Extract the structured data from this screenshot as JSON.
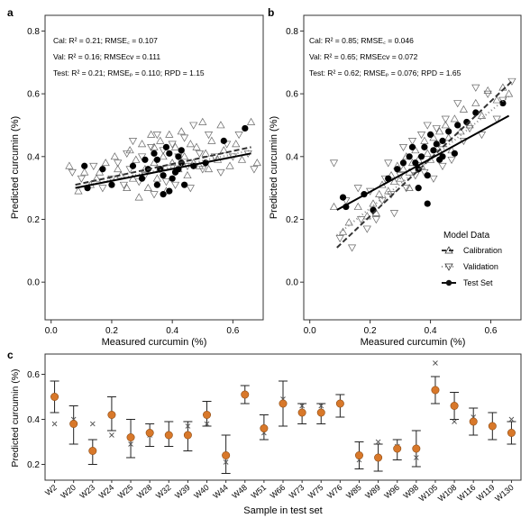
{
  "chart_data": [
    {
      "type": "scatter",
      "panel_label": "a",
      "xlabel": "Measured curcumin (%)",
      "ylabel": "Predicted curcumin (%)",
      "xlim": [
        -0.02,
        0.7
      ],
      "ylim": [
        -0.12,
        0.85
      ],
      "xticks": [
        "0.0",
        "0.2",
        "0.4",
        "0.6"
      ],
      "yticks": [
        "0.0",
        "0.2",
        "0.4",
        "0.6",
        "0.8"
      ],
      "annotations": {
        "cal": "Cal: R² = 0.21; RMSE꜀ = 0.107",
        "val": "Val: R² = 0.16; RMSEᴄᴠ = 0.111",
        "test": "Test: R² = 0.21; RMSEₚ = 0.110; RPD = 1.15"
      },
      "lines": {
        "calibration": {
          "x": [
            0.08,
            0.66
          ],
          "y": [
            0.31,
            0.43
          ]
        },
        "validation": {
          "x": [
            0.08,
            0.66
          ],
          "y": [
            0.3,
            0.42
          ]
        },
        "test": {
          "x": [
            0.08,
            0.66
          ],
          "y": [
            0.3,
            0.41
          ]
        }
      },
      "test_points": [
        [
          0.11,
          0.37
        ],
        [
          0.12,
          0.3
        ],
        [
          0.17,
          0.36
        ],
        [
          0.2,
          0.31
        ],
        [
          0.27,
          0.37
        ],
        [
          0.3,
          0.33
        ],
        [
          0.31,
          0.39
        ],
        [
          0.32,
          0.36
        ],
        [
          0.34,
          0.41
        ],
        [
          0.35,
          0.39
        ],
        [
          0.35,
          0.31
        ],
        [
          0.36,
          0.36
        ],
        [
          0.37,
          0.34
        ],
        [
          0.37,
          0.28
        ],
        [
          0.38,
          0.43
        ],
        [
          0.39,
          0.29
        ],
        [
          0.39,
          0.41
        ],
        [
          0.4,
          0.33
        ],
        [
          0.41,
          0.35
        ],
        [
          0.42,
          0.4
        ],
        [
          0.42,
          0.36
        ],
        [
          0.43,
          0.38
        ],
        [
          0.43,
          0.42
        ],
        [
          0.44,
          0.31
        ],
        [
          0.47,
          0.37
        ],
        [
          0.51,
          0.38
        ],
        [
          0.57,
          0.45
        ],
        [
          0.64,
          0.49
        ]
      ],
      "cal_points": [
        [
          0.06,
          0.37
        ],
        [
          0.09,
          0.29
        ],
        [
          0.11,
          0.35
        ],
        [
          0.13,
          0.31
        ],
        [
          0.15,
          0.33
        ],
        [
          0.16,
          0.35
        ],
        [
          0.18,
          0.38
        ],
        [
          0.21,
          0.4
        ],
        [
          0.23,
          0.34
        ],
        [
          0.25,
          0.3
        ],
        [
          0.26,
          0.42
        ],
        [
          0.27,
          0.33
        ],
        [
          0.28,
          0.39
        ],
        [
          0.29,
          0.27
        ],
        [
          0.3,
          0.44
        ],
        [
          0.31,
          0.36
        ],
        [
          0.32,
          0.3
        ],
        [
          0.33,
          0.47
        ],
        [
          0.34,
          0.38
        ],
        [
          0.35,
          0.33
        ],
        [
          0.36,
          0.45
        ],
        [
          0.37,
          0.4
        ],
        [
          0.38,
          0.29
        ],
        [
          0.39,
          0.47
        ],
        [
          0.4,
          0.38
        ],
        [
          0.41,
          0.43
        ],
        [
          0.42,
          0.36
        ],
        [
          0.43,
          0.48
        ],
        [
          0.44,
          0.4
        ],
        [
          0.45,
          0.34
        ],
        [
          0.46,
          0.44
        ],
        [
          0.47,
          0.38
        ],
        [
          0.48,
          0.43
        ],
        [
          0.49,
          0.37
        ],
        [
          0.5,
          0.51
        ],
        [
          0.51,
          0.41
        ],
        [
          0.52,
          0.36
        ],
        [
          0.53,
          0.45
        ],
        [
          0.55,
          0.39
        ],
        [
          0.56,
          0.5
        ],
        [
          0.57,
          0.42
        ],
        [
          0.59,
          0.37
        ],
        [
          0.61,
          0.44
        ],
        [
          0.63,
          0.39
        ],
        [
          0.66,
          0.51
        ],
        [
          0.68,
          0.38
        ],
        [
          0.22,
          0.36
        ],
        [
          0.34,
          0.43
        ]
      ],
      "val_points": [
        [
          0.07,
          0.35
        ],
        [
          0.1,
          0.33
        ],
        [
          0.14,
          0.37
        ],
        [
          0.17,
          0.3
        ],
        [
          0.2,
          0.33
        ],
        [
          0.22,
          0.38
        ],
        [
          0.24,
          0.31
        ],
        [
          0.26,
          0.36
        ],
        [
          0.27,
          0.45
        ],
        [
          0.29,
          0.32
        ],
        [
          0.3,
          0.4
        ],
        [
          0.31,
          0.34
        ],
        [
          0.33,
          0.43
        ],
        [
          0.34,
          0.28
        ],
        [
          0.35,
          0.47
        ],
        [
          0.36,
          0.36
        ],
        [
          0.37,
          0.42
        ],
        [
          0.38,
          0.32
        ],
        [
          0.4,
          0.44
        ],
        [
          0.41,
          0.31
        ],
        [
          0.42,
          0.4
        ],
        [
          0.44,
          0.46
        ],
        [
          0.45,
          0.37
        ],
        [
          0.46,
          0.3
        ],
        [
          0.47,
          0.5
        ],
        [
          0.49,
          0.41
        ],
        [
          0.5,
          0.36
        ],
        [
          0.52,
          0.47
        ],
        [
          0.54,
          0.4
        ],
        [
          0.56,
          0.35
        ],
        [
          0.58,
          0.44
        ],
        [
          0.6,
          0.4
        ],
        [
          0.62,
          0.47
        ],
        [
          0.65,
          0.41
        ],
        [
          0.67,
          0.36
        ],
        [
          0.25,
          0.41
        ]
      ]
    },
    {
      "type": "scatter",
      "panel_label": "b",
      "xlabel": "Measured curcumin (%)",
      "ylabel": "Predicted curcumin (%)",
      "xlim": [
        -0.02,
        0.7
      ],
      "ylim": [
        -0.12,
        0.85
      ],
      "xticks": [
        "0.0",
        "0.2",
        "0.4",
        "0.6"
      ],
      "yticks": [
        "0.0",
        "0.2",
        "0.4",
        "0.6",
        "0.8"
      ],
      "annotations": {
        "cal": "Cal: R² = 0.85; RMSE꜀ = 0.046",
        "val": "Val: R² = 0.65; RMSEᴄᴠ = 0.072",
        "test": "Test: R² = 0.62; RMSEₚ = 0.076; RPD = 1.65"
      },
      "legend": {
        "title": "Model Data",
        "entries": [
          "Calibration",
          "Validation",
          "Test Set"
        ]
      },
      "lines": {
        "calibration": {
          "x": [
            0.09,
            0.67
          ],
          "y": [
            0.11,
            0.64
          ]
        },
        "validation": {
          "x": [
            0.09,
            0.67
          ],
          "y": [
            0.15,
            0.6
          ]
        },
        "test": {
          "x": [
            0.09,
            0.66
          ],
          "y": [
            0.23,
            0.53
          ]
        }
      },
      "test_points": [
        [
          0.11,
          0.27
        ],
        [
          0.12,
          0.24
        ],
        [
          0.18,
          0.28
        ],
        [
          0.21,
          0.23
        ],
        [
          0.26,
          0.33
        ],
        [
          0.29,
          0.36
        ],
        [
          0.31,
          0.38
        ],
        [
          0.33,
          0.4
        ],
        [
          0.34,
          0.43
        ],
        [
          0.35,
          0.38
        ],
        [
          0.36,
          0.36
        ],
        [
          0.37,
          0.4
        ],
        [
          0.38,
          0.43
        ],
        [
          0.39,
          0.34
        ],
        [
          0.4,
          0.47
        ],
        [
          0.41,
          0.42
        ],
        [
          0.42,
          0.44
        ],
        [
          0.43,
          0.39
        ],
        [
          0.44,
          0.45
        ],
        [
          0.46,
          0.48
        ],
        [
          0.48,
          0.41
        ],
        [
          0.49,
          0.5
        ],
        [
          0.52,
          0.51
        ],
        [
          0.55,
          0.54
        ],
        [
          0.64,
          0.57
        ],
        [
          0.39,
          0.25
        ],
        [
          0.36,
          0.3
        ],
        [
          0.44,
          0.4
        ]
      ],
      "cal_points": [
        [
          0.08,
          0.24
        ],
        [
          0.11,
          0.16
        ],
        [
          0.13,
          0.19
        ],
        [
          0.16,
          0.24
        ],
        [
          0.19,
          0.21
        ],
        [
          0.21,
          0.25
        ],
        [
          0.23,
          0.28
        ],
        [
          0.24,
          0.31
        ],
        [
          0.26,
          0.29
        ],
        [
          0.27,
          0.34
        ],
        [
          0.28,
          0.32
        ],
        [
          0.29,
          0.37
        ],
        [
          0.3,
          0.33
        ],
        [
          0.31,
          0.36
        ],
        [
          0.32,
          0.4
        ],
        [
          0.33,
          0.35
        ],
        [
          0.34,
          0.38
        ],
        [
          0.35,
          0.42
        ],
        [
          0.36,
          0.39
        ],
        [
          0.37,
          0.37
        ],
        [
          0.38,
          0.45
        ],
        [
          0.39,
          0.41
        ],
        [
          0.4,
          0.39
        ],
        [
          0.41,
          0.46
        ],
        [
          0.42,
          0.43
        ],
        [
          0.43,
          0.48
        ],
        [
          0.44,
          0.44
        ],
        [
          0.45,
          0.5
        ],
        [
          0.46,
          0.46
        ],
        [
          0.47,
          0.42
        ],
        [
          0.48,
          0.52
        ],
        [
          0.5,
          0.48
        ],
        [
          0.51,
          0.55
        ],
        [
          0.53,
          0.5
        ],
        [
          0.55,
          0.57
        ],
        [
          0.57,
          0.53
        ],
        [
          0.59,
          0.61
        ],
        [
          0.62,
          0.58
        ],
        [
          0.64,
          0.62
        ],
        [
          0.66,
          0.6
        ],
        [
          0.22,
          0.22
        ],
        [
          0.33,
          0.3
        ]
      ],
      "val_points": [
        [
          0.08,
          0.38
        ],
        [
          0.1,
          0.14
        ],
        [
          0.12,
          0.26
        ],
        [
          0.14,
          0.11
        ],
        [
          0.17,
          0.2
        ],
        [
          0.19,
          0.17
        ],
        [
          0.2,
          0.29
        ],
        [
          0.22,
          0.2
        ],
        [
          0.24,
          0.26
        ],
        [
          0.25,
          0.33
        ],
        [
          0.27,
          0.28
        ],
        [
          0.28,
          0.22
        ],
        [
          0.3,
          0.34
        ],
        [
          0.31,
          0.43
        ],
        [
          0.32,
          0.3
        ],
        [
          0.34,
          0.45
        ],
        [
          0.35,
          0.34
        ],
        [
          0.37,
          0.47
        ],
        [
          0.38,
          0.35
        ],
        [
          0.39,
          0.5
        ],
        [
          0.41,
          0.33
        ],
        [
          0.42,
          0.49
        ],
        [
          0.44,
          0.37
        ],
        [
          0.45,
          0.52
        ],
        [
          0.47,
          0.39
        ],
        [
          0.49,
          0.57
        ],
        [
          0.51,
          0.45
        ],
        [
          0.53,
          0.49
        ],
        [
          0.55,
          0.62
        ],
        [
          0.57,
          0.47
        ],
        [
          0.59,
          0.6
        ],
        [
          0.62,
          0.52
        ],
        [
          0.64,
          0.58
        ],
        [
          0.67,
          0.64
        ],
        [
          0.16,
          0.3
        ],
        [
          0.26,
          0.38
        ]
      ]
    },
    {
      "type": "errorbar",
      "panel_label": "c",
      "xlabel": "Sample in test set",
      "ylabel": "Predicted curcumin (%)",
      "ylim": [
        0.13,
        0.69
      ],
      "yticks": [
        "0.2",
        "0.4",
        "0.6"
      ],
      "categories": [
        "W2",
        "W20",
        "W23",
        "W24",
        "W25",
        "W28",
        "W32",
        "W39",
        "W40",
        "W44",
        "W48",
        "W51",
        "W66",
        "W73",
        "W75",
        "W76",
        "W85",
        "W89",
        "W96",
        "W98",
        "W105",
        "W108",
        "W116",
        "W119",
        "W130"
      ],
      "predicted": [
        0.5,
        0.38,
        0.26,
        0.42,
        0.32,
        0.34,
        0.33,
        0.33,
        0.42,
        0.24,
        0.51,
        0.36,
        0.47,
        0.43,
        0.43,
        0.47,
        0.24,
        0.23,
        0.27,
        0.27,
        0.53,
        0.46,
        0.39,
        0.37,
        0.34
      ],
      "error_low": [
        0.43,
        0.29,
        0.2,
        0.35,
        0.23,
        0.28,
        0.28,
        0.26,
        0.37,
        0.16,
        0.47,
        0.31,
        0.37,
        0.38,
        0.38,
        0.41,
        0.18,
        0.17,
        0.22,
        0.19,
        0.47,
        0.4,
        0.33,
        0.31,
        0.29
      ],
      "error_high": [
        0.57,
        0.46,
        0.31,
        0.5,
        0.4,
        0.38,
        0.39,
        0.39,
        0.48,
        0.33,
        0.55,
        0.42,
        0.57,
        0.47,
        0.47,
        0.51,
        0.3,
        0.29,
        0.31,
        0.35,
        0.59,
        0.52,
        0.45,
        0.43,
        0.39
      ],
      "measured": [
        0.38,
        0.4,
        0.38,
        0.33,
        0.29,
        0.33,
        0.33,
        0.37,
        0.38,
        0.21,
        0.51,
        0.34,
        0.49,
        0.46,
        0.46,
        0.47,
        0.22,
        0.3,
        0.28,
        0.23,
        0.65,
        0.39,
        0.41,
        0.37,
        0.4
      ],
      "colors": {
        "marker": "#d8782a",
        "error": "#222222",
        "measured": "#555555"
      }
    }
  ]
}
